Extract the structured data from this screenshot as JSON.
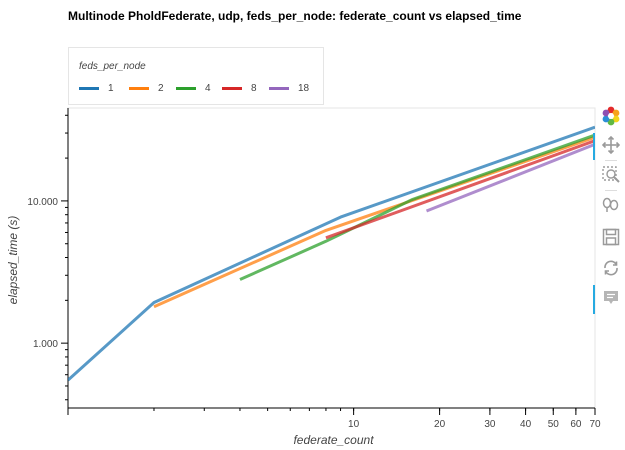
{
  "chart_data": {
    "type": "line",
    "title": "Multinode PholdFederate, udp, feds_per_node: federate_count vs elapsed_time",
    "xlabel": "federate_count",
    "ylabel": "elapsed_time (s)",
    "xscale": "log",
    "yscale": "log",
    "xlim": [
      1,
      70
    ],
    "ylim": [
      0.35,
      45
    ],
    "x_tick_labels": [
      "10",
      "20",
      "30",
      "40",
      "50",
      "60",
      "70"
    ],
    "x_tick_values": [
      10,
      20,
      30,
      40,
      50,
      60,
      70
    ],
    "y_tick_labels": [
      "1.000",
      "10.000"
    ],
    "y_tick_values": [
      1,
      10
    ],
    "legend_title": "feds_per_node",
    "legend_position": "top-left",
    "series": [
      {
        "name": "1",
        "color": "#1f77b4",
        "x": [
          1,
          2,
          9,
          70
        ],
        "y": [
          0.55,
          1.93,
          7.7,
          33
        ]
      },
      {
        "name": "2",
        "color": "#ff7f0e",
        "x": [
          2,
          8,
          70
        ],
        "y": [
          1.8,
          6.2,
          28
        ]
      },
      {
        "name": "4",
        "color": "#2ca02c",
        "x": [
          4,
          8,
          16,
          70
        ],
        "y": [
          2.8,
          5.2,
          10.2,
          29
        ]
      },
      {
        "name": "8",
        "color": "#d62728",
        "x": [
          8,
          70
        ],
        "y": [
          5.5,
          26.5
        ]
      },
      {
        "name": "18",
        "color": "#9467bd",
        "x": [
          18,
          70
        ],
        "y": [
          8.5,
          25
        ]
      }
    ]
  },
  "toolbar": {
    "tools": [
      "bokeh-logo-icon",
      "pan-icon",
      "box-zoom-icon",
      "wheel-zoom-icon",
      "save-icon",
      "reset-icon",
      "hover-icon"
    ]
  }
}
